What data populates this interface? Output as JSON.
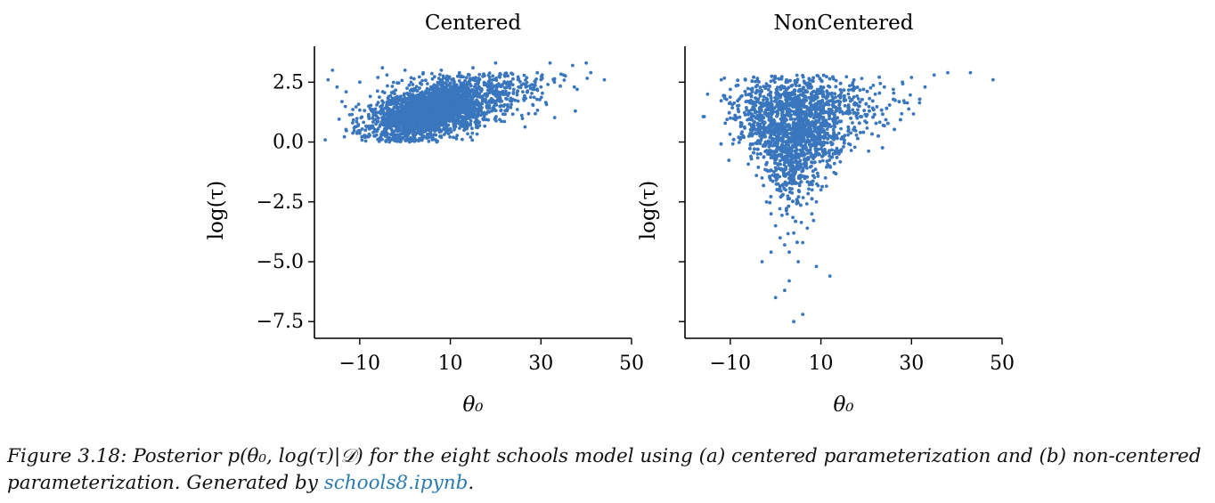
{
  "chart_data": [
    {
      "type": "scatter",
      "title": "Centered",
      "xlabel": "θ₀",
      "ylabel": "log(τ)",
      "xlim": [
        -20,
        50
      ],
      "ylim": [
        -8.2,
        4.0
      ],
      "xticks": [
        -10,
        10,
        30,
        50
      ],
      "xtick_labels": [
        "−10",
        "10",
        "30",
        "50"
      ],
      "yticks": [
        2.5,
        0.0,
        -2.5,
        -5.0,
        -7.5
      ],
      "ytick_labels": [
        "2.5",
        "0.0",
        "−2.5",
        "−5.0",
        "−7.5"
      ],
      "grid": false,
      "color": "#3a76bd",
      "points": [
        [
          -17,
          2.6
        ],
        [
          -16,
          3.0
        ],
        [
          -15,
          2.3
        ],
        [
          -13,
          2.1
        ],
        [
          -10,
          2.5
        ],
        [
          -8,
          1.5
        ],
        [
          -6,
          2.7
        ],
        [
          -5,
          3.1
        ],
        [
          -3,
          1.0
        ],
        [
          -2,
          0.7
        ],
        [
          0,
          0.3
        ],
        [
          1,
          0.0
        ],
        [
          2,
          0.2
        ],
        [
          3,
          0.05
        ],
        [
          5,
          0.3
        ],
        [
          6,
          0.1
        ],
        [
          7,
          0.0
        ],
        [
          8,
          0.2
        ],
        [
          9,
          0.4
        ],
        [
          10,
          0.5
        ],
        [
          12,
          0.8
        ],
        [
          14,
          1.0
        ],
        [
          16,
          1.3
        ],
        [
          18,
          1.5
        ],
        [
          20,
          1.7
        ],
        [
          22,
          2.0
        ],
        [
          24,
          2.2
        ],
        [
          26,
          2.1
        ],
        [
          28,
          2.4
        ],
        [
          30,
          2.3
        ],
        [
          32,
          3.3
        ],
        [
          33,
          2.5
        ],
        [
          35,
          2.8
        ],
        [
          37,
          3.2
        ],
        [
          38,
          2.2
        ],
        [
          40,
          3.3
        ],
        [
          41,
          2.9
        ],
        [
          44,
          2.6
        ],
        [
          20,
          3.3
        ],
        [
          15,
          3.1
        ],
        [
          12,
          2.9
        ],
        [
          8,
          3.0
        ],
        [
          4,
          2.9
        ],
        [
          0,
          3.0
        ],
        [
          -4,
          2.8
        ]
      ]
    },
    {
      "type": "scatter",
      "title": "NonCentered",
      "xlabel": "θ₀",
      "ylabel": "log(τ)",
      "xlim": [
        -20,
        50
      ],
      "ylim": [
        -8.2,
        4.0
      ],
      "xticks": [
        -10,
        10,
        30,
        50
      ],
      "xtick_labels": [
        "−10",
        "10",
        "30",
        "50"
      ],
      "yticks": [
        2.5,
        0.0,
        -2.5,
        -5.0,
        -7.5
      ],
      "ytick_labels": [
        "",
        "",
        "",
        "",
        ""
      ],
      "grid": false,
      "color": "#3a76bd",
      "points": [
        [
          -15,
          2.0
        ],
        [
          -12,
          2.6
        ],
        [
          -10,
          2.2
        ],
        [
          -8,
          1.8
        ],
        [
          -6,
          1.2
        ],
        [
          -5,
          0.5
        ],
        [
          -4,
          -0.5
        ],
        [
          -3,
          -1.5
        ],
        [
          -2,
          -2.5
        ],
        [
          -1,
          -3.0
        ],
        [
          0,
          -3.5
        ],
        [
          1,
          -4.0
        ],
        [
          2,
          -4.3
        ],
        [
          3,
          -4.6
        ],
        [
          4,
          -3.8
        ],
        [
          5,
          -5.0
        ],
        [
          6,
          -4.2
        ],
        [
          7,
          -3.6
        ],
        [
          8,
          -3.0
        ],
        [
          9,
          -2.5
        ],
        [
          10,
          -2.0
        ],
        [
          11,
          -1.5
        ],
        [
          12,
          -1.0
        ],
        [
          14,
          -0.5
        ],
        [
          16,
          0.3
        ],
        [
          18,
          1.0
        ],
        [
          20,
          1.6
        ],
        [
          22,
          2.0
        ],
        [
          24,
          2.3
        ],
        [
          26,
          2.2
        ],
        [
          28,
          2.5
        ],
        [
          30,
          2.7
        ],
        [
          33,
          2.3
        ],
        [
          35,
          2.8
        ],
        [
          38,
          2.9
        ],
        [
          43,
          2.9
        ],
        [
          48,
          2.6
        ],
        [
          -3,
          -5.0
        ],
        [
          0,
          -6.5
        ],
        [
          2,
          -6.2
        ],
        [
          4,
          -7.5
        ],
        [
          6,
          -7.2
        ],
        [
          12,
          -5.6
        ],
        [
          9,
          -5.2
        ],
        [
          -1,
          -4.6
        ],
        [
          3,
          -5.8
        ],
        [
          -10,
          1.0
        ],
        [
          -7,
          0.2
        ],
        [
          15,
          -0.2
        ],
        [
          13,
          -0.9
        ]
      ]
    }
  ],
  "caption": {
    "prefix": "Figure 3.18: Posterior p(θ₀, log(τ)|𝒟) for the eight schools model using (a) centered parameterization and (b) non-centered parameterization. Generated by ",
    "link": "schools8.ipynb",
    "suffix": "."
  }
}
